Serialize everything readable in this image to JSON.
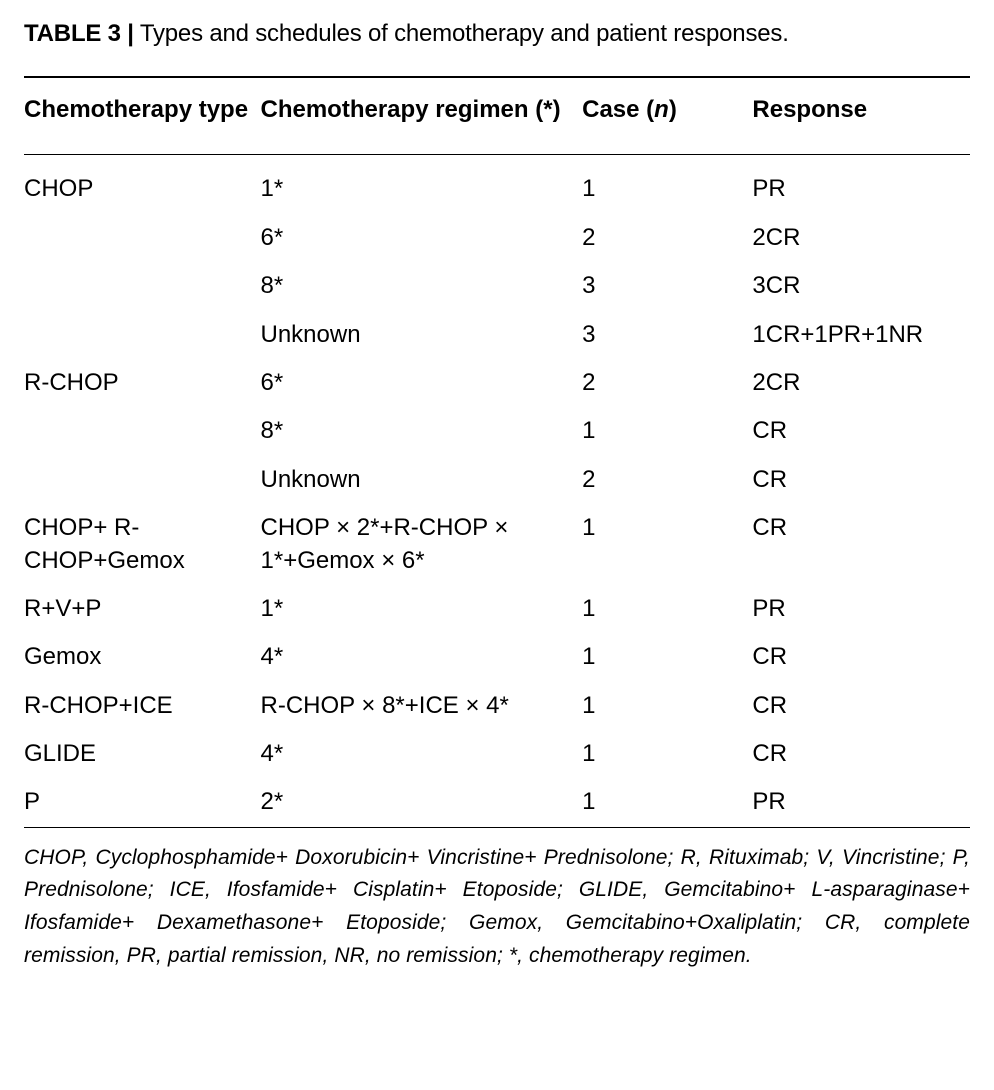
{
  "caption_label": "TABLE 3 |",
  "caption_text": " Types and schedules of chemotherapy and patient responses.",
  "columns": {
    "type": "Chemotherapy type",
    "regimen_prefix": "Chemotherapy regimen (",
    "regimen_star": "*",
    "regimen_suffix": ")",
    "case_prefix": "Case (",
    "case_n": "n",
    "case_suffix": ")",
    "response": "Response"
  },
  "rows": [
    {
      "type": "CHOP",
      "regimen": "1*",
      "case": "1",
      "response": "PR"
    },
    {
      "type": "",
      "regimen": "6*",
      "case": "2",
      "response": "2CR"
    },
    {
      "type": "",
      "regimen": "8*",
      "case": "3",
      "response": "3CR"
    },
    {
      "type": "",
      "regimen": "Unknown",
      "case": "3",
      "response": "1CR+1PR+1NR"
    },
    {
      "type": "R-CHOP",
      "regimen": "6*",
      "case": "2",
      "response": "2CR"
    },
    {
      "type": "",
      "regimen": "8*",
      "case": "1",
      "response": "CR"
    },
    {
      "type": "",
      "regimen": "Unknown",
      "case": "2",
      "response": "CR"
    },
    {
      "type": "CHOP+ R-CHOP+Gemox",
      "regimen": "CHOP × 2*+R-CHOP × 1*+Gemox × 6*",
      "case": "1",
      "response": "CR"
    },
    {
      "type": "R+V+P",
      "regimen": "1*",
      "case": "1",
      "response": "PR"
    },
    {
      "type": "Gemox",
      "regimen": "4*",
      "case": "1",
      "response": "CR"
    },
    {
      "type": "R-CHOP+ICE",
      "regimen": "R-CHOP × 8*+ICE × 4*",
      "case": "1",
      "response": "CR"
    },
    {
      "type": "GLIDE",
      "regimen": "4*",
      "case": "1",
      "response": "CR"
    },
    {
      "type": "P",
      "regimen": "2*",
      "case": "1",
      "response": "PR"
    }
  ],
  "footnote": "CHOP, Cyclophosphamide+ Doxorubicin+ Vincristine+ Prednisolone; R, Rituximab; V, Vincristine; P, Prednisolone; ICE, Ifosfamide+ Cisplatin+ Etoposide; GLIDE, Gemcitabino+ L-asparaginase+ Ifosfamide+ Dexamethasone+ Etoposide; Gemox, Gemcitabino+Oxaliplatin; CR, complete remission, PR, partial remission, NR, no remission; *, chemotherapy regimen.",
  "style": {
    "font_family": "Helvetica Neue",
    "caption_fontsize": 24,
    "table_fontsize": 24,
    "footnote_fontsize": 21,
    "text_color": "#000000",
    "background_color": "#ffffff",
    "border_color": "#000000",
    "border_top_width": 2,
    "border_mid_width": 1.5,
    "col_widths_pct": [
      25,
      34,
      18,
      23
    ]
  }
}
